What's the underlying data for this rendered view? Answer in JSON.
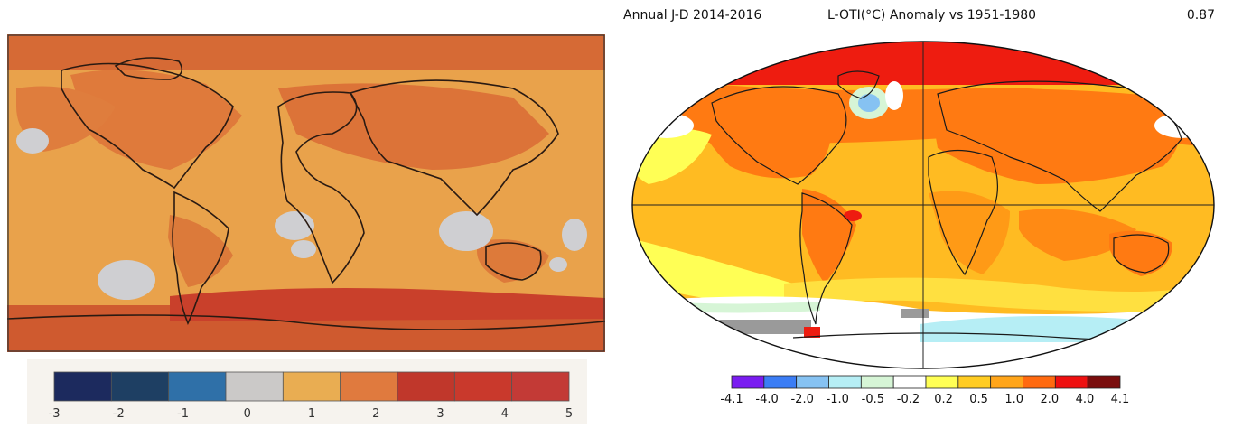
{
  "left_panel": {
    "legend": {
      "colors": [
        "#1c2a5e",
        "#1e3f63",
        "#2f70a8",
        "#cbc9c8",
        "#e9ad52",
        "#e07a3e",
        "#c0372b",
        "#c9392c",
        "#c33a36"
      ],
      "labels": [
        "-3",
        "-2",
        "-1",
        "0",
        "1",
        "2",
        "3",
        "4",
        "5"
      ]
    }
  },
  "right_panel": {
    "title_left": "Annual J-D 2014-2016",
    "title_center": "L-OTI(°C) Anomaly vs 1951-1980",
    "title_right": "0.87",
    "legend": {
      "colors": [
        "#7a1cf0",
        "#3b7df5",
        "#86c2f2",
        "#b6eef5",
        "#d6f5d6",
        "#ffffff",
        "#ffff55",
        "#ffcc22",
        "#ffa51a",
        "#ff6a10",
        "#ee1010",
        "#7a0d0d"
      ],
      "labels": [
        "-4.1",
        "-4.0",
        "-2.0",
        "-1.0",
        "-0.5",
        "-0.2",
        "0.2",
        "0.5",
        "1.0",
        "2.0",
        "4.0",
        "4.1"
      ]
    }
  }
}
